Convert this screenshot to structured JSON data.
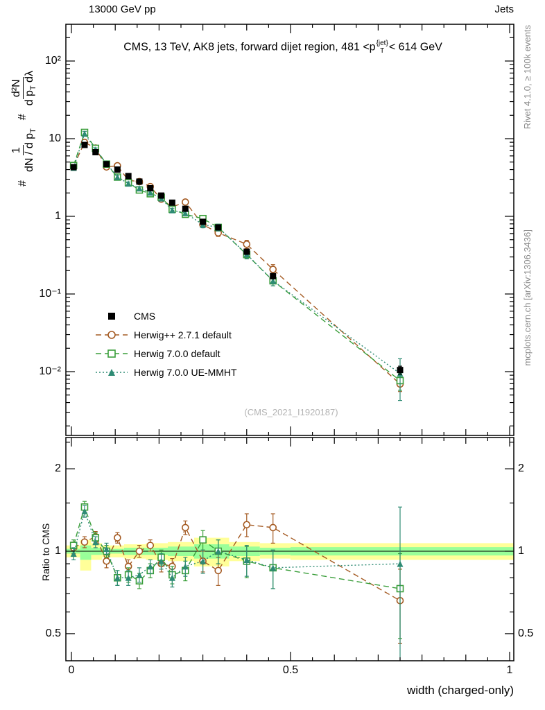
{
  "header": {
    "left": "13000 GeV pp",
    "right": "Jets"
  },
  "title": {
    "part1": "CMS, 13 TeV, AK8 jets, forward dijet region, 481 <p",
    "sup": "{jet}",
    "sub": "T",
    "part2": "< 614 GeV"
  },
  "ylabel": {
    "hash1": "#",
    "frac1_num": "1",
    "frac1_den": "dN / d p",
    "frac1_den_sub": "T",
    "hash2": "#",
    "frac2_num": "d²N",
    "frac2_den_pre": "d p",
    "frac2_den_sub": "T",
    "frac2_den_tail": " dλ"
  },
  "ratio_ylabel": "Ratio to CMS",
  "xlabel": "width (charged-only)",
  "watermark": "(CMS_2021_I1920187)",
  "right_captions": {
    "top": "Rivet 4.1.0, ≥ 100k events",
    "bottom": "mcplots.cern.ch [arXiv:1306.3436]"
  },
  "axis": {
    "x_ticks": [
      {
        "value": 0,
        "label": "0"
      },
      {
        "value": 0.5,
        "label": "0.5"
      },
      {
        "value": 1,
        "label": "1"
      }
    ],
    "y_ticks_main": [
      {
        "value": 100,
        "label": "10²"
      },
      {
        "value": 10,
        "label": "10"
      },
      {
        "value": 1,
        "label": "1"
      },
      {
        "value": 0.1,
        "label": "10⁻¹"
      },
      {
        "value": 0.01,
        "label": "10⁻²"
      }
    ],
    "y_ticks_ratio": [
      {
        "value": 2,
        "label": "2"
      },
      {
        "value": 1,
        "label": "1"
      },
      {
        "value": 0.5,
        "label": "0.5"
      }
    ]
  },
  "chart_data": {
    "type": "scatter",
    "yscale": "log",
    "xlim": [
      0,
      1
    ],
    "main_ylim": [
      0.0015,
      300
    ],
    "ratio_ylim": [
      0.4,
      2.6
    ],
    "x": [
      0.005,
      0.03,
      0.055,
      0.08,
      0.105,
      0.13,
      0.155,
      0.18,
      0.205,
      0.23,
      0.26,
      0.3,
      0.335,
      0.4,
      0.46,
      0.75
    ],
    "series": [
      {
        "name": "CMS",
        "marker": "square-filled",
        "color": "#000000",
        "values": [
          4.3,
          8.3,
          6.7,
          4.7,
          4.0,
          3.3,
          2.8,
          2.3,
          1.85,
          1.5,
          1.25,
          0.85,
          0.72,
          0.35,
          0.17,
          0.0105
        ],
        "rel_err": [
          0.05,
          0.04,
          0.04,
          0.04,
          0.04,
          0.04,
          0.04,
          0.04,
          0.04,
          0.05,
          0.05,
          0.05,
          0.06,
          0.06,
          0.08,
          0.12
        ]
      },
      {
        "name": "Herwig++ 2.7.1 default",
        "marker": "circle-open",
        "color": "#a45a22",
        "line": "dashed",
        "ratio_to_cms": [
          1.03,
          1.08,
          1.13,
          0.92,
          1.12,
          0.88,
          1.0,
          1.05,
          0.9,
          0.88,
          1.22,
          0.92,
          0.85,
          1.25,
          1.22,
          0.66
        ],
        "rel_err": [
          0.05,
          0.05,
          0.05,
          0.05,
          0.05,
          0.05,
          0.05,
          0.05,
          0.06,
          0.06,
          0.07,
          0.08,
          0.1,
          0.12,
          0.15,
          0.2
        ]
      },
      {
        "name": "Herwig 7.0.0 default",
        "marker": "square-open",
        "color": "#3a9e3a",
        "line": "dashed",
        "ratio_to_cms": [
          1.05,
          1.45,
          1.12,
          1.0,
          0.8,
          0.82,
          0.78,
          0.85,
          0.95,
          0.82,
          0.85,
          1.1,
          1.0,
          0.92,
          0.87,
          0.73
        ],
        "rel_err": [
          0.05,
          0.07,
          0.05,
          0.05,
          0.05,
          0.05,
          0.05,
          0.05,
          0.06,
          0.06,
          0.07,
          0.09,
          0.1,
          0.12,
          0.14,
          0.25
        ]
      },
      {
        "name": "Herwig 7.0.0 UE-MMHT",
        "marker": "triangle-filled",
        "color": "#2e8b74",
        "line": "dotted",
        "ratio_to_cms": [
          0.98,
          1.4,
          1.08,
          1.02,
          0.8,
          0.8,
          0.82,
          0.88,
          0.92,
          0.8,
          0.88,
          0.92,
          1.0,
          0.93,
          0.87,
          0.9
        ],
        "rel_err": [
          0.05,
          0.07,
          0.05,
          0.05,
          0.05,
          0.05,
          0.05,
          0.05,
          0.06,
          0.06,
          0.07,
          0.09,
          0.1,
          0.12,
          0.14,
          0.55
        ]
      }
    ],
    "ratio_bands": {
      "yellow_color": "#ffff99",
      "green_color": "#99ff99",
      "yellow": [
        {
          "x0": 0,
          "x1": 0.02,
          "lo": 0.95,
          "hi": 1.05
        },
        {
          "x0": 0.02,
          "x1": 0.045,
          "lo": 0.85,
          "hi": 1.1
        },
        {
          "x0": 0.045,
          "x1": 0.07,
          "lo": 0.93,
          "hi": 1.07
        },
        {
          "x0": 0.07,
          "x1": 0.12,
          "lo": 0.95,
          "hi": 1.05
        },
        {
          "x0": 0.12,
          "x1": 0.17,
          "lo": 0.94,
          "hi": 1.06
        },
        {
          "x0": 0.17,
          "x1": 0.22,
          "lo": 0.93,
          "hi": 1.07
        },
        {
          "x0": 0.22,
          "x1": 0.28,
          "lo": 0.92,
          "hi": 1.08
        },
        {
          "x0": 0.28,
          "x1": 0.36,
          "lo": 0.88,
          "hi": 1.12
        },
        {
          "x0": 0.36,
          "x1": 0.43,
          "lo": 0.92,
          "hi": 1.08
        },
        {
          "x0": 0.43,
          "x1": 0.5,
          "lo": 0.94,
          "hi": 1.07
        },
        {
          "x0": 0.5,
          "x1": 1,
          "lo": 0.93,
          "hi": 1.07
        }
      ],
      "green": [
        {
          "x0": 0,
          "x1": 0.02,
          "lo": 0.98,
          "hi": 1.02
        },
        {
          "x0": 0.02,
          "x1": 0.045,
          "lo": 0.93,
          "hi": 1.05
        },
        {
          "x0": 0.045,
          "x1": 0.07,
          "lo": 0.97,
          "hi": 1.03
        },
        {
          "x0": 0.07,
          "x1": 0.12,
          "lo": 0.98,
          "hi": 1.02
        },
        {
          "x0": 0.12,
          "x1": 0.17,
          "lo": 0.97,
          "hi": 1.03
        },
        {
          "x0": 0.17,
          "x1": 0.22,
          "lo": 0.97,
          "hi": 1.03
        },
        {
          "x0": 0.22,
          "x1": 0.28,
          "lo": 0.96,
          "hi": 1.04
        },
        {
          "x0": 0.28,
          "x1": 0.36,
          "lo": 0.94,
          "hi": 1.06
        },
        {
          "x0": 0.36,
          "x1": 0.43,
          "lo": 0.96,
          "hi": 1.04
        },
        {
          "x0": 0.43,
          "x1": 0.5,
          "lo": 0.97,
          "hi": 1.03
        },
        {
          "x0": 0.5,
          "x1": 1,
          "lo": 0.965,
          "hi": 1.035
        }
      ]
    }
  }
}
